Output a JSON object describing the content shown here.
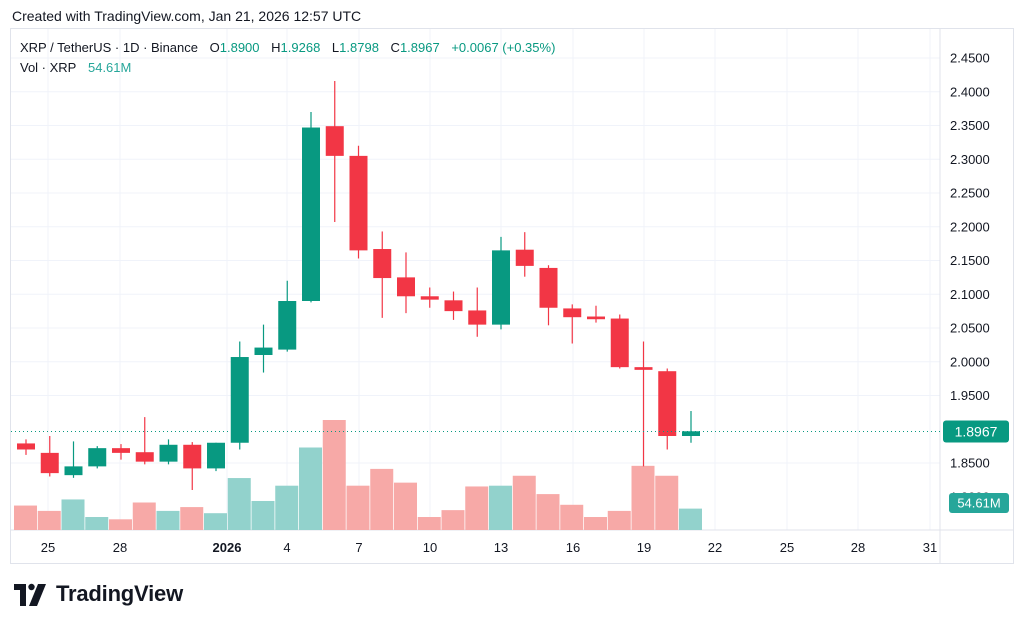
{
  "header": {
    "created_text": "Created with TradingView.com, Jan 21, 2026 12:57 UTC"
  },
  "legend": {
    "symbol": "XRP / TetherUS · 1D · Binance",
    "o_label": "O",
    "o_value": "1.8900",
    "h_label": "H",
    "h_value": "1.9268",
    "l_label": "L",
    "l_value": "1.8798",
    "c_label": "C",
    "c_value": "1.8967",
    "change": "+0.0067 (+0.35%)",
    "vol_label": "Vol · XRP",
    "vol_value": "54.61M"
  },
  "footer": {
    "brand": "TradingView"
  },
  "colors": {
    "up": "#089981",
    "down": "#f23645",
    "vol_up": "#92d2cc",
    "vol_down": "#f7a9a7",
    "grid": "#f0f3fa"
  },
  "chart_data": {
    "type": "candlestick",
    "y_axis_ticks": [
      "2.4500",
      "2.4000",
      "2.3500",
      "2.3000",
      "2.2500",
      "2.2000",
      "2.1500",
      "2.1000",
      "2.0500",
      "2.0000",
      "1.9500",
      "1.8500"
    ],
    "ylim": [
      1.8,
      2.47
    ],
    "x_tick_labels": [
      "25",
      "28",
      "2026",
      "4",
      "7",
      "10",
      "13",
      "16",
      "19",
      "22",
      "25",
      "28",
      "31"
    ],
    "last_price_label": "1.8967",
    "last_price": 1.8967,
    "volume_label": "54.61M",
    "candles": [
      {
        "o": 1.879,
        "h": 1.885,
        "l": 1.862,
        "c": 1.87,
        "v": 0.32
      },
      {
        "o": 1.865,
        "h": 1.89,
        "l": 1.83,
        "c": 1.835,
        "v": 0.25
      },
      {
        "o": 1.832,
        "h": 1.882,
        "l": 1.828,
        "c": 1.845,
        "v": 0.4
      },
      {
        "o": 1.845,
        "h": 1.875,
        "l": 1.842,
        "c": 1.872,
        "v": 0.17
      },
      {
        "o": 1.872,
        "h": 1.878,
        "l": 1.855,
        "c": 1.865,
        "v": 0.14
      },
      {
        "o": 1.866,
        "h": 1.918,
        "l": 1.848,
        "c": 1.852,
        "v": 0.36
      },
      {
        "o": 1.852,
        "h": 1.885,
        "l": 1.848,
        "c": 1.877,
        "v": 0.25
      },
      {
        "o": 1.877,
        "h": 1.881,
        "l": 1.81,
        "c": 1.842,
        "v": 0.3
      },
      {
        "o": 1.842,
        "h": 1.88,
        "l": 1.838,
        "c": 1.88,
        "v": 0.22
      },
      {
        "o": 1.88,
        "h": 2.03,
        "l": 1.87,
        "c": 2.007,
        "v": 0.68
      },
      {
        "o": 2.01,
        "h": 2.055,
        "l": 1.984,
        "c": 2.021,
        "v": 0.38
      },
      {
        "o": 2.018,
        "h": 2.12,
        "l": 2.015,
        "c": 2.09,
        "v": 0.58
      },
      {
        "o": 2.09,
        "h": 2.37,
        "l": 2.088,
        "c": 2.347,
        "v": 1.08
      },
      {
        "o": 2.349,
        "h": 2.416,
        "l": 2.207,
        "c": 2.305,
        "v": 1.44
      },
      {
        "o": 2.305,
        "h": 2.32,
        "l": 2.153,
        "c": 2.165,
        "v": 0.58
      },
      {
        "o": 2.167,
        "h": 2.193,
        "l": 2.065,
        "c": 2.124,
        "v": 0.8
      },
      {
        "o": 2.125,
        "h": 2.162,
        "l": 2.072,
        "c": 2.097,
        "v": 0.62
      },
      {
        "o": 2.097,
        "h": 2.11,
        "l": 2.08,
        "c": 2.092,
        "v": 0.17
      },
      {
        "o": 2.091,
        "h": 2.104,
        "l": 2.062,
        "c": 2.075,
        "v": 0.26
      },
      {
        "o": 2.076,
        "h": 2.11,
        "l": 2.037,
        "c": 2.055,
        "v": 0.57
      },
      {
        "o": 2.055,
        "h": 2.185,
        "l": 2.048,
        "c": 2.165,
        "v": 0.58
      },
      {
        "o": 2.166,
        "h": 2.192,
        "l": 2.126,
        "c": 2.142,
        "v": 0.71
      },
      {
        "o": 2.139,
        "h": 2.143,
        "l": 2.054,
        "c": 2.08,
        "v": 0.47
      },
      {
        "o": 2.079,
        "h": 2.085,
        "l": 2.027,
        "c": 2.066,
        "v": 0.33
      },
      {
        "o": 2.067,
        "h": 2.083,
        "l": 2.058,
        "c": 2.063,
        "v": 0.17
      },
      {
        "o": 2.064,
        "h": 2.07,
        "l": 1.99,
        "c": 1.992,
        "v": 0.25
      },
      {
        "o": 1.992,
        "h": 2.03,
        "l": 1.845,
        "c": 1.988,
        "v": 0.84
      },
      {
        "o": 1.986,
        "h": 1.99,
        "l": 1.87,
        "c": 1.89,
        "v": 0.71
      },
      {
        "o": 1.89,
        "h": 1.927,
        "l": 1.88,
        "c": 1.897,
        "v": 0.28
      }
    ]
  }
}
